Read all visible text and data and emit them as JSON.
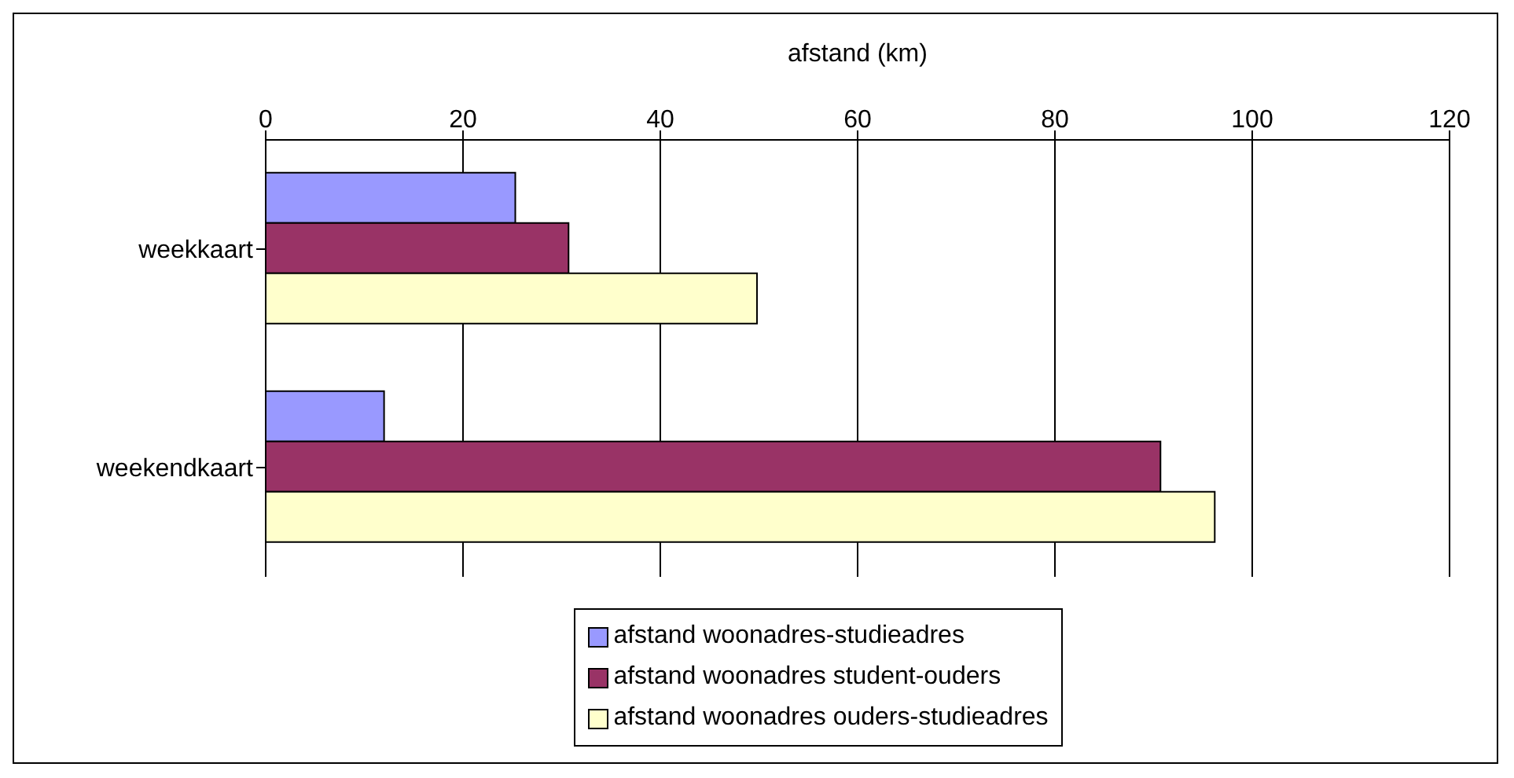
{
  "chart_data": {
    "type": "bar",
    "orientation": "horizontal",
    "xlabel": "afstand (km)",
    "categories": [
      "weekkaart",
      "weekendkaart"
    ],
    "series": [
      {
        "name": "afstand woonadres-studieadres",
        "color": "#9999ff",
        "values": [
          25.3,
          12
        ]
      },
      {
        "name": "afstand woonadres student-ouders",
        "color": "#993366",
        "values": [
          30.7,
          90.7
        ]
      },
      {
        "name": "afstand woonadres ouders-studieadres",
        "color": "#ffffcc",
        "values": [
          49.8,
          96.2
        ]
      }
    ],
    "xlim": [
      0,
      120
    ],
    "xticks": [
      0,
      20,
      40,
      60,
      80,
      100,
      120
    ],
    "grid": "x",
    "legend": "bottom"
  }
}
